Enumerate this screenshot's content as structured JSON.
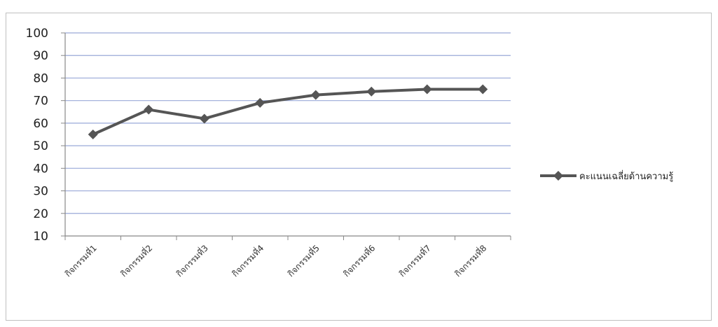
{
  "chart_data": {
    "type": "line",
    "categories": [
      "กิจกรรมที่1",
      "กิจกรรมที่2",
      "กิจกรรมที่3",
      "กิจกรรมที่4",
      "กิจกรรมที่5",
      "กิจกรรมที่6",
      "กิจกรรมที่7",
      "กิจกรรมที่8"
    ],
    "series": [
      {
        "name": "คะแนนเฉลี่ยด้านความรู้",
        "values": [
          55,
          66,
          62,
          69,
          72.5,
          74,
          75,
          75
        ],
        "color": "#555555"
      }
    ],
    "yticks": [
      10,
      20,
      30,
      40,
      50,
      60,
      70,
      80,
      90,
      100
    ],
    "ylim": [
      10,
      100
    ],
    "grid": true,
    "grid_color": "#9aa9d8",
    "legend_position": "right",
    "title": "",
    "xlabel": "",
    "ylabel": ""
  }
}
